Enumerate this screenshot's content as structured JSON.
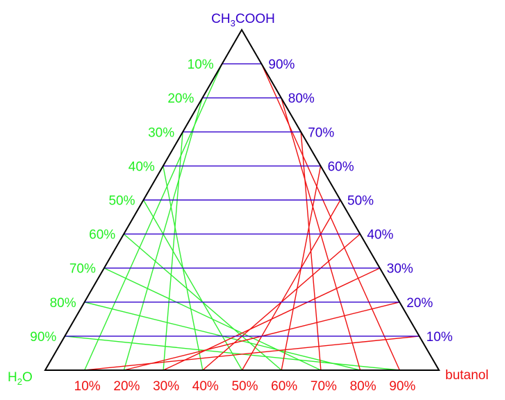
{
  "vertices": {
    "top": "CH3COOH",
    "left": "H2O",
    "right": "butanol"
  },
  "vertex_parts": {
    "top": {
      "a": "CH",
      "sub": "3",
      "b": "COOH"
    },
    "left": {
      "a": "H",
      "sub": "2",
      "b": "O"
    }
  },
  "ticks": {
    "left": [
      "10%",
      "20%",
      "30%",
      "40%",
      "50%",
      "60%",
      "70%",
      "80%",
      "90%"
    ],
    "right": [
      "90%",
      "80%",
      "70%",
      "60%",
      "50%",
      "40%",
      "30%",
      "20%",
      "10%"
    ],
    "bottom": [
      "10%",
      "20%",
      "30%",
      "40%",
      "50%",
      "60%",
      "70%",
      "80%",
      "90%"
    ]
  },
  "colors": {
    "outline": "#000000",
    "acetic_grid": "#3300cc",
    "water_grid": "#33ee33",
    "butanol_grid": "#ee1111",
    "water_label": "#22ee22"
  }
}
